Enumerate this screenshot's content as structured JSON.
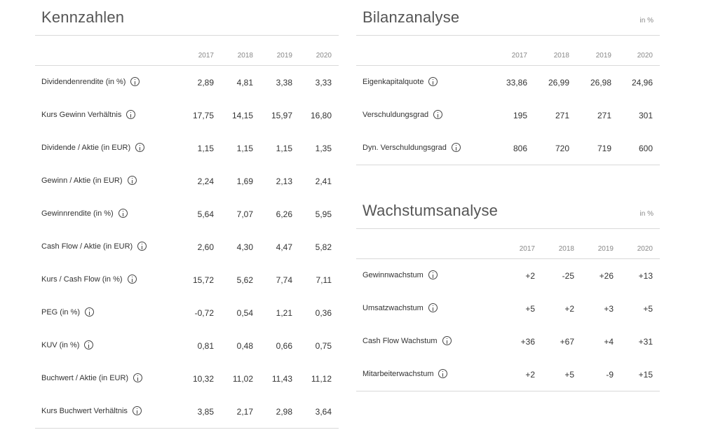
{
  "kennzahlen": {
    "title": "Kennzahlen",
    "years": [
      "2017",
      "2018",
      "2019",
      "2020"
    ],
    "rows": [
      {
        "label": "Dividendenrendite (in %)",
        "values": [
          "2,89",
          "4,81",
          "3,38",
          "3,33"
        ]
      },
      {
        "label": "Kurs Gewinn Verhältnis",
        "values": [
          "17,75",
          "14,15",
          "15,97",
          "16,80"
        ]
      },
      {
        "label": "Dividende / Aktie (in EUR)",
        "values": [
          "1,15",
          "1,15",
          "1,15",
          "1,35"
        ]
      },
      {
        "label": "Gewinn / Aktie (in EUR)",
        "values": [
          "2,24",
          "1,69",
          "2,13",
          "2,41"
        ]
      },
      {
        "label": "Gewinnrendite (in %)",
        "values": [
          "5,64",
          "7,07",
          "6,26",
          "5,95"
        ]
      },
      {
        "label": "Cash Flow / Aktie (in EUR)",
        "values": [
          "2,60",
          "4,30",
          "4,47",
          "5,82"
        ]
      },
      {
        "label": "Kurs / Cash Flow (in %)",
        "values": [
          "15,72",
          "5,62",
          "7,74",
          "7,11"
        ]
      },
      {
        "label": "PEG (in %)",
        "values": [
          "-0,72",
          "0,54",
          "1,21",
          "0,36"
        ]
      },
      {
        "label": "KUV (in %)",
        "values": [
          "0,81",
          "0,48",
          "0,66",
          "0,75"
        ]
      },
      {
        "label": "Buchwert / Aktie (in EUR)",
        "values": [
          "10,32",
          "11,02",
          "11,43",
          "11,12"
        ]
      },
      {
        "label": "Kurs Buchwert Verhältnis",
        "values": [
          "3,85",
          "2,17",
          "2,98",
          "3,64"
        ]
      }
    ]
  },
  "bilanz": {
    "title": "Bilanzanalyse",
    "unit": "in %",
    "years": [
      "2017",
      "2018",
      "2019",
      "2020"
    ],
    "rows": [
      {
        "label": "Eigenkapitalquote",
        "values": [
          "33,86",
          "26,99",
          "26,98",
          "24,96"
        ]
      },
      {
        "label": "Verschuldungsgrad",
        "values": [
          "195",
          "271",
          "271",
          "301"
        ]
      },
      {
        "label": "Dyn. Verschuldungsgrad",
        "values": [
          "806",
          "720",
          "719",
          "600"
        ]
      }
    ]
  },
  "wachstum": {
    "title": "Wachstumsanalyse",
    "unit": "in %",
    "years": [
      "2017",
      "2018",
      "2019",
      "2020"
    ],
    "rows": [
      {
        "label": "Gewinnwachstum",
        "values": [
          "+2",
          "-25",
          "+26",
          "+13"
        ]
      },
      {
        "label": "Umsatzwachstum",
        "values": [
          "+5",
          "+2",
          "+3",
          "+5"
        ]
      },
      {
        "label": "Cash Flow Wachstum",
        "values": [
          "+36",
          "+67",
          "+4",
          "+31"
        ]
      },
      {
        "label": "Mitarbeiterwachstum",
        "values": [
          "+2",
          "+5",
          "-9",
          "+15"
        ]
      }
    ]
  }
}
